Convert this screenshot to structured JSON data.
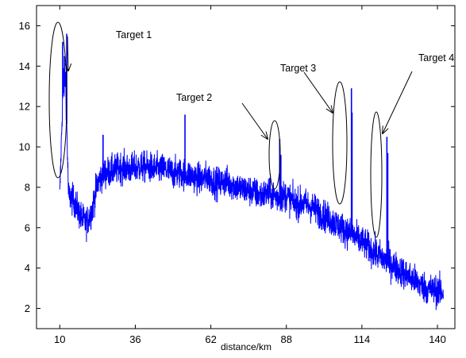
{
  "chart_data": {
    "type": "line",
    "title": "",
    "xlabel": "distance/km",
    "ylabel": "",
    "xlim": [
      2,
      146
    ],
    "ylim": [
      1,
      17
    ],
    "x_ticks": [
      10,
      36,
      62,
      88,
      114,
      140
    ],
    "y_ticks": [
      2,
      4,
      6,
      8,
      10,
      12,
      14,
      16
    ],
    "grid": false,
    "legend": "none",
    "series_color": "#0000ff",
    "series": [
      {
        "x": [
          10,
          11,
          12,
          13,
          15,
          17,
          19,
          21,
          23,
          25,
          28,
          31,
          34,
          37,
          40,
          43,
          46,
          49,
          52,
          55,
          58,
          61,
          64,
          67,
          70,
          73,
          76,
          79,
          82,
          85,
          88,
          91,
          94,
          97,
          100,
          103,
          106,
          109,
          112,
          115,
          118,
          121,
          124,
          127,
          130,
          133,
          136,
          139,
          142
        ],
        "y": [
          7.5,
          12.5,
          13.5,
          7.6,
          7.3,
          6.6,
          6.2,
          6.8,
          8.2,
          8.7,
          8.8,
          9.0,
          8.9,
          9.0,
          9.0,
          8.9,
          8.9,
          8.7,
          8.7,
          8.6,
          8.4,
          8.5,
          8.2,
          8.3,
          8.1,
          7.9,
          7.8,
          7.6,
          7.7,
          7.5,
          7.6,
          7.2,
          7.2,
          7.0,
          6.7,
          6.4,
          6.1,
          5.8,
          5.5,
          5.2,
          4.8,
          4.5,
          4.2,
          3.9,
          3.6,
          3.3,
          3.0,
          2.9,
          2.8
        ]
      },
      {
        "x": [
          11.0,
          11.2,
          11.6,
          12.4,
          85.7,
          86.1,
          110.4,
          110.6,
          122.6,
          122.9,
          24.9,
          53.1
        ],
        "y": [
          15.2,
          13.9,
          14.5,
          15.6,
          10.4,
          9.6,
          12.9,
          11.7,
          10.5,
          9.7,
          10.6,
          11.6
        ]
      }
    ],
    "annotations": [
      {
        "label": "Target 1",
        "x": 12
      },
      {
        "label": "Target 2",
        "x": 86
      },
      {
        "label": "Target 3",
        "x": 110.5
      },
      {
        "label": "Target 4",
        "x": 122.5
      }
    ]
  }
}
